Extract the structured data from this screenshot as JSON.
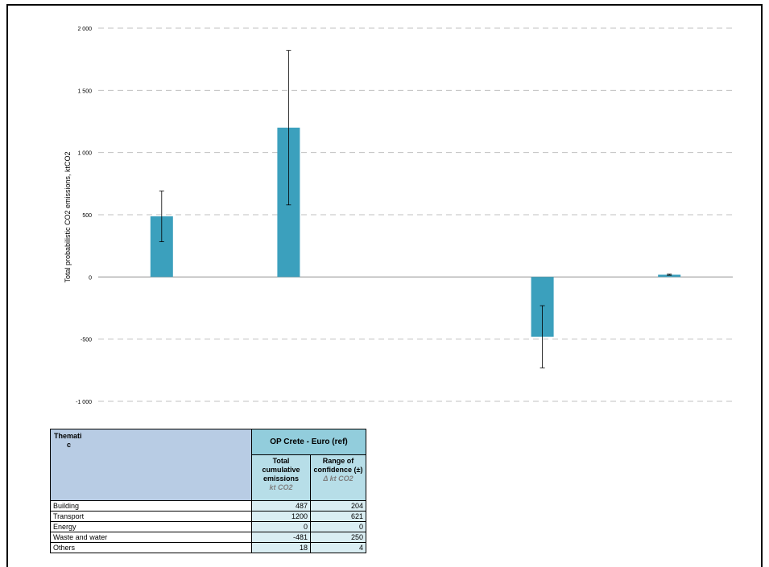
{
  "chart_data": {
    "type": "bar",
    "categories": [
      "Building",
      "Transport",
      "Energy",
      "Waste and water",
      "Others"
    ],
    "values": [
      487,
      1200,
      0,
      -481,
      18
    ],
    "error": [
      204,
      621,
      0,
      250,
      4
    ],
    "ylabel": "Total probabilistic CO2 emissions, ktCO2",
    "ylim": [
      -1000,
      2000
    ],
    "yticks": [
      2000,
      1500,
      1000,
      500,
      0,
      -500,
      -1000
    ],
    "ytick_labels": [
      "2 000",
      "1 500",
      "1 000",
      "500",
      "0",
      "-500",
      "-1 000"
    ],
    "grid": true,
    "bar_color": "#3ba0bd"
  },
  "table": {
    "thematic_line1": "Themati",
    "thematic_line2": "c",
    "op_title": "OP Crete - Euro (ref)",
    "col1_title": "Total cumulative emissions",
    "col1_unit": "kt CO2",
    "col2_title": "Range of confidence (±)",
    "col2_unit": "Δ kt CO2",
    "rows": [
      {
        "label": "Building",
        "total": "487",
        "range": "204"
      },
      {
        "label": "Transport",
        "total": "1200",
        "range": "621"
      },
      {
        "label": "Energy",
        "total": "0",
        "range": "0"
      },
      {
        "label": "Waste and water",
        "total": "-481",
        "range": "250"
      },
      {
        "label": "Others",
        "total": "18",
        "range": "4"
      }
    ]
  }
}
